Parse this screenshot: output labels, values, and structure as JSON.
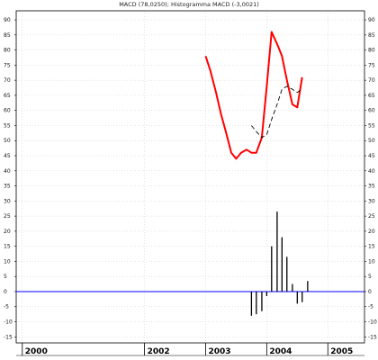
{
  "chart_data": {
    "type": "line",
    "title": "MACD (78,0250); Histogramma MACD (-3,0021)",
    "y_ticks": [
      -15,
      -10,
      -5,
      0,
      5,
      10,
      15,
      20,
      25,
      30,
      35,
      40,
      45,
      50,
      55,
      60,
      65,
      70,
      75,
      80,
      85,
      90
    ],
    "ylim": [
      -17,
      93
    ],
    "x_ticks": [
      "2000",
      "2002",
      "2003",
      "2004",
      "2005"
    ],
    "xlim": [
      1999.9,
      2005.6
    ],
    "grid": true,
    "series": [
      {
        "style": "solid",
        "color": "#ff0000",
        "x": [
          2003.0,
          2003.08,
          2003.17,
          2003.25,
          2003.33,
          2003.42,
          2003.5,
          2003.58,
          2003.67,
          2003.75,
          2003.83,
          2003.92,
          2004.0,
          2004.08,
          2004.17,
          2004.25,
          2004.33,
          2004.42,
          2004.5,
          2004.58
        ],
        "y": [
          78,
          73,
          66,
          59,
          53,
          46,
          44,
          46,
          47,
          46,
          46,
          51,
          68,
          86,
          82,
          78,
          70,
          62,
          61,
          71
        ]
      },
      {
        "style": "dashed",
        "color": "#000000",
        "x": [
          2003.75,
          2003.83,
          2003.92,
          2004.0,
          2004.08,
          2004.17,
          2004.25,
          2004.33,
          2004.42,
          2004.5,
          2004.58
        ],
        "y": [
          55,
          53,
          51,
          52,
          57,
          62,
          67,
          68,
          67,
          66,
          67
        ]
      },
      {
        "type": "bar",
        "color": "#000000",
        "x": [
          2003.75,
          2003.83,
          2003.92,
          2004.0,
          2004.08,
          2004.17,
          2004.25,
          2004.33,
          2004.42,
          2004.5,
          2004.58,
          2004.67
        ],
        "y": [
          -8,
          -7.5,
          -6.5,
          -1.5,
          15,
          26.5,
          18,
          11.5,
          2.5,
          -4,
          -3.5,
          3.5
        ]
      }
    ],
    "zero_line_color": "#0000ff"
  }
}
